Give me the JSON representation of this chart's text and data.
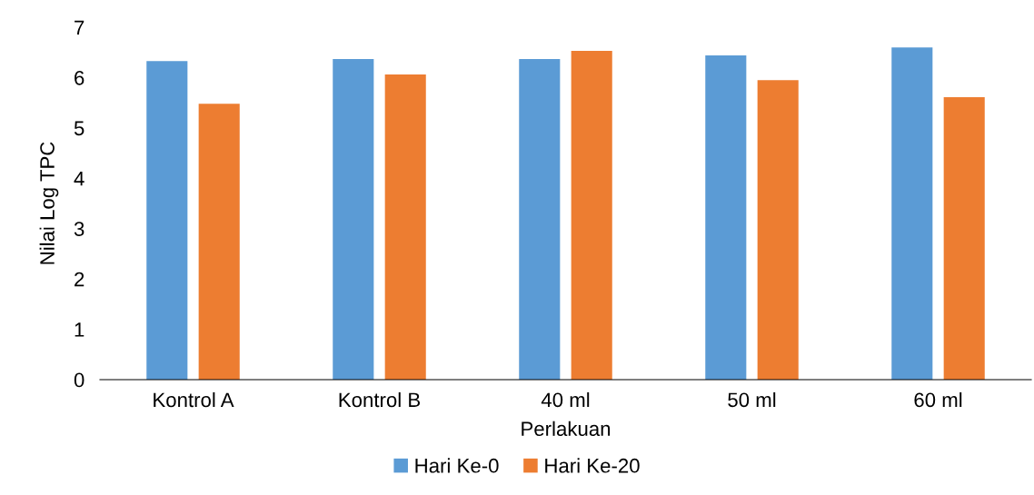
{
  "chart_data": {
    "type": "bar",
    "xlabel": "Perlakuan",
    "ylabel": "Nilai Log TPC",
    "categories": [
      "Kontrol A",
      "Kontrol B",
      "40 ml",
      "50 ml",
      "60 ml"
    ],
    "series": [
      {
        "name": "Hari Ke-0",
        "color": "#5b9bd5",
        "values": [
          6.33,
          6.37,
          6.37,
          6.44,
          6.6
        ]
      },
      {
        "name": "Hari Ke-20",
        "color": "#ed7d31",
        "values": [
          5.48,
          6.06,
          6.53,
          5.95,
          5.61
        ]
      }
    ],
    "ylim": [
      0,
      7
    ],
    "yticks": [
      0,
      1,
      2,
      3,
      4,
      5,
      6,
      7
    ],
    "grid": false,
    "legend": "bottom"
  }
}
